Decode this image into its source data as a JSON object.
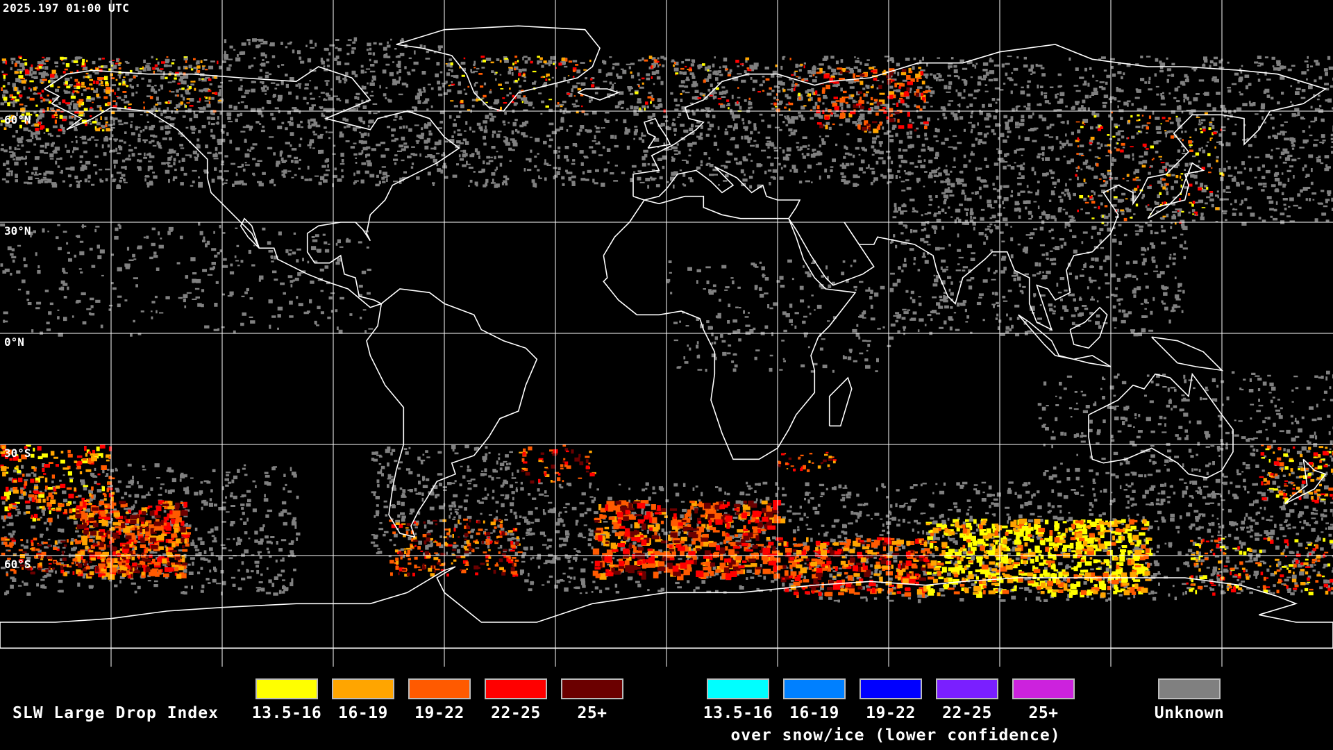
{
  "timestamp": "2025.197 01:00 UTC",
  "latitude_labels": [
    {
      "id": "60n",
      "text": "60°N",
      "lat": 60
    },
    {
      "id": "30n",
      "text": "30°N",
      "lat": 30
    },
    {
      "id": "0n",
      "text": "0°N",
      "lat": 0
    },
    {
      "id": "30s",
      "text": "30°S",
      "lat": -30
    },
    {
      "id": "60s",
      "text": "60°S",
      "lat": -60
    }
  ],
  "legend": {
    "title": "SLW Large Drop Index",
    "normal_bins": [
      {
        "label": "13.5-16",
        "color": "#ffff00"
      },
      {
        "label": "16-19",
        "color": "#ffa500"
      },
      {
        "label": "19-22",
        "color": "#ff5a00"
      },
      {
        "label": "22-25",
        "color": "#ff0000"
      },
      {
        "label": "25+",
        "color": "#6b0000"
      }
    ],
    "snow_bins": [
      {
        "label": "13.5-16",
        "color": "#00ffff"
      },
      {
        "label": "16-19",
        "color": "#0080ff"
      },
      {
        "label": "19-22",
        "color": "#0000ff"
      },
      {
        "label": "22-25",
        "color": "#7a1fff"
      },
      {
        "label": "25+",
        "color": "#cc22dd"
      }
    ],
    "snow_note": "over snow/ice (lower confidence)",
    "unknown": {
      "label": "Unknown",
      "color": "#808080"
    }
  },
  "map": {
    "projection": "equirectangular",
    "lon_range": [
      -180,
      180
    ],
    "lat_range": [
      -90,
      90
    ],
    "graticule_step_deg": 30,
    "background_color": "#000000",
    "coastline_color": "#ffffff",
    "gridline_color": "#ffffff"
  }
}
